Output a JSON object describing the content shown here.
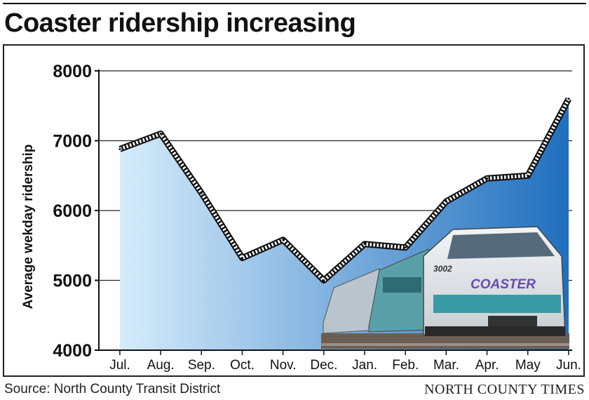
{
  "title": "Coaster ridership increasing",
  "footer": {
    "source": "Source: North County Transit District",
    "brand": "NORTH COUNTY TIMES"
  },
  "train_logo": "COASTER",
  "train_number": "3002",
  "colors": {
    "area_light": "#d6ecfb",
    "area_dark": "#1f6fbf",
    "line": "#111111"
  },
  "chart_data": {
    "type": "area",
    "title": "Coaster ridership increasing",
    "xlabel": "",
    "ylabel": "Average wekday ridership",
    "categories": [
      "Jul.",
      "Aug.",
      "Sep.",
      "Oct.",
      "Nov.",
      "Dec.",
      "Jan.",
      "Feb.",
      "Mar.",
      "Apr.",
      "May",
      "Jun."
    ],
    "values": [
      6880,
      7100,
      6250,
      5320,
      5580,
      5000,
      5520,
      5470,
      6130,
      6460,
      6500,
      7600
    ],
    "ylim": [
      4000,
      8000
    ],
    "yticks": [
      "4000",
      "5000",
      "6000",
      "7000",
      "8000"
    ],
    "grid": true,
    "legend": "none"
  }
}
